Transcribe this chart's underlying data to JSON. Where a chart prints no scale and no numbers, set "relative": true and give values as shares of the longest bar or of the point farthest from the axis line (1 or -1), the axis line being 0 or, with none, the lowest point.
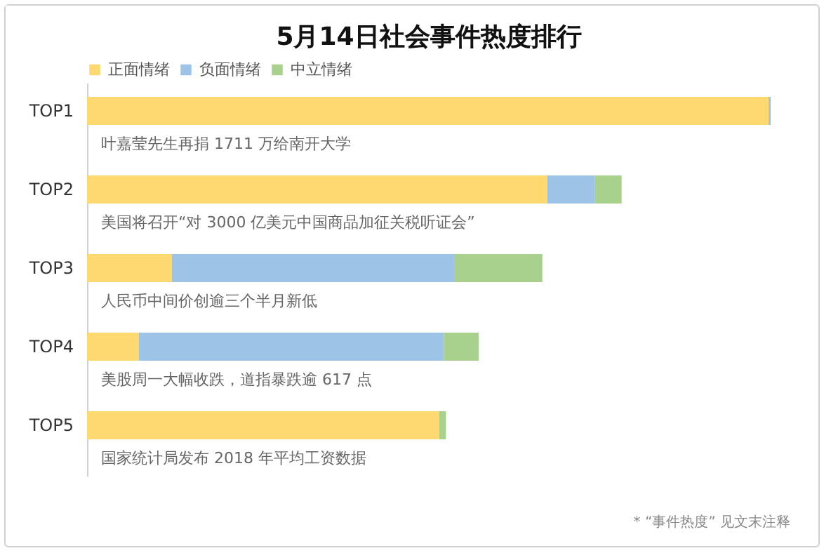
{
  "chart_data": {
    "type": "bar",
    "orientation": "horizontal",
    "stacked": true,
    "relative": true,
    "title": "5月14日社会事件热度排行",
    "legend": "top",
    "categories": [
      "TOP1",
      "TOP2",
      "TOP3",
      "TOP4",
      "TOP5"
    ],
    "series": [
      {
        "name": "正面情绪",
        "color": "#fdd96f",
        "values": [
          0.997,
          0.673,
          0.124,
          0.076,
          0.515
        ]
      },
      {
        "name": "负面情绪",
        "color": "#9dc3e6",
        "values": [
          0.003,
          0.07,
          0.413,
          0.446,
          0
        ]
      },
      {
        "name": "中立情绪",
        "color": "#a9d18e",
        "values": [
          0,
          0.039,
          0.129,
          0.051,
          0.01
        ]
      }
    ],
    "annotations": [
      "叶嘉莹先生再捐 1711 万给南开大学",
      "美国将召开“对 3000 亿美元中国商品加征关税听证会”",
      "人民币中间价创逾三个半月新低",
      "美股周一大幅收跌，道指暴跌逾 617 点",
      "国家统计局发布 2018 年平均工资数据",
      "* “事件热度” 见文末注释"
    ]
  }
}
